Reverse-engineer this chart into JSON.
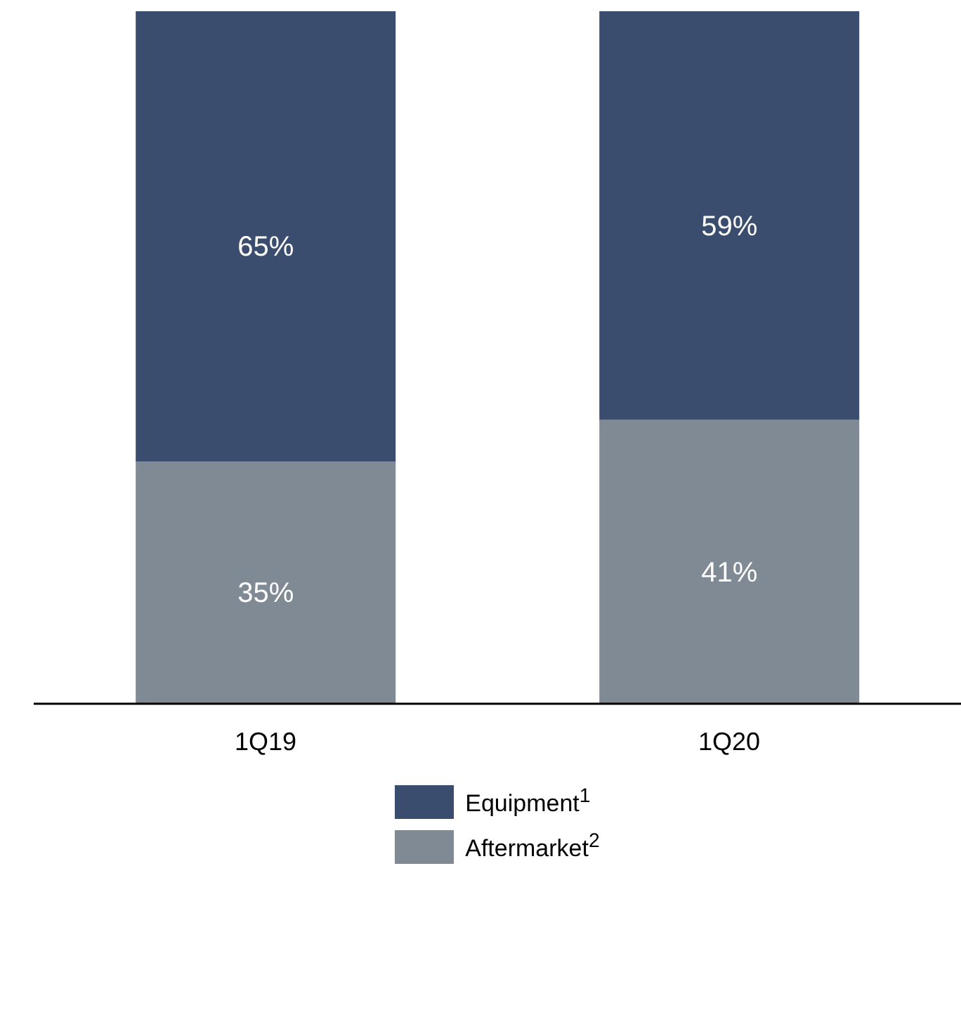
{
  "chart_data": {
    "type": "bar",
    "stacked": true,
    "categories": [
      "1Q19",
      "1Q20"
    ],
    "series": [
      {
        "name": "Aftermarket$^{2}$",
        "color": "#808a94",
        "values": [
          35,
          41
        ],
        "value_labels": [
          "35%",
          "41%"
        ]
      },
      {
        "name": "Equipment$^{1}$",
        "color": "#3a4d6e",
        "values": [
          65,
          59
        ],
        "value_labels": [
          "65%",
          "59%"
        ]
      }
    ],
    "tick_labels": "x",
    "legend": "bottom"
  }
}
